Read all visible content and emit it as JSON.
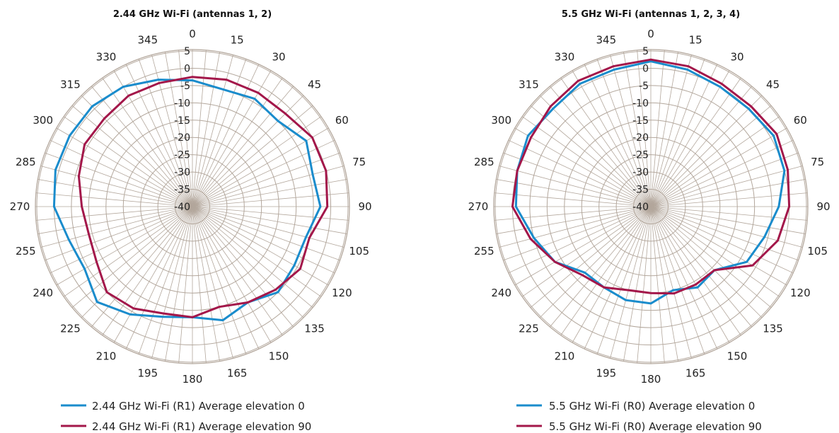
{
  "chart_data": [
    {
      "type": "polar-line",
      "title": "2.44 GHz Wi-Fi (antennas 1, 2)",
      "angle_ticks": [
        "0",
        "15",
        "30",
        "45",
        "60",
        "75",
        "90",
        "105",
        "120",
        "135",
        "150",
        "165",
        "180",
        "195",
        "210",
        "225",
        "240",
        "255",
        "270",
        "285",
        "300",
        "315",
        "330",
        "345"
      ],
      "radial_ticks": [
        "5",
        "0",
        "-5",
        "-10",
        "-15",
        "-20",
        "-25",
        "-30",
        "-35",
        "-40"
      ],
      "rlim": [
        -40,
        5
      ],
      "angle_direction": "clockwise",
      "zero_location": "top",
      "grid": true,
      "legend_position": "bottom",
      "colors": {
        "series1": "#1a8ccc",
        "series2": "#a3174a",
        "grid": "#b3a79c"
      },
      "angles": [
        0,
        15,
        30,
        45,
        60,
        75,
        90,
        105,
        120,
        135,
        150,
        165,
        180,
        195,
        210,
        225,
        240,
        255,
        270,
        285,
        300,
        315,
        330,
        345
      ],
      "series": [
        {
          "name": "2.44 GHz Wi-Fi (R1) Average elevation 0",
          "values": [
            -3.5,
            -5,
            -4,
            -5,
            -2,
            -4,
            -3,
            -6,
            -6,
            -5,
            -8,
            -6,
            -8,
            -7,
            -4,
            -1,
            -4,
            -3,
            0,
            1,
            1,
            1,
            0,
            -2
          ]
        },
        {
          "name": "2.44 GHz Wi-Fi (R1) Average elevation 90",
          "values": [
            -2.5,
            -2,
            -2,
            -2,
            0,
            0,
            -1,
            -5,
            -4,
            -6,
            -8,
            -10,
            -8,
            -8,
            -6,
            -5,
            -8,
            -9,
            -8,
            -6,
            -4,
            -4,
            -3,
            -3
          ]
        }
      ]
    },
    {
      "type": "polar-line",
      "title": "5.5 GHz Wi-Fi (antennas 1, 2, 3, 4)",
      "angle_ticks": [
        "0",
        "15",
        "30",
        "45",
        "60",
        "75",
        "90",
        "105",
        "120",
        "135",
        "150",
        "165",
        "180",
        "195",
        "210",
        "225",
        "240",
        "255",
        "270",
        "285",
        "300",
        "315",
        "330",
        "345"
      ],
      "radial_ticks": [
        "5",
        "0",
        "-5",
        "-10",
        "-15",
        "-20",
        "-25",
        "-30",
        "-35",
        "-40"
      ],
      "rlim": [
        -40,
        5
      ],
      "angle_direction": "clockwise",
      "zero_location": "top",
      "grid": true,
      "legend_position": "bottom",
      "colors": {
        "series1": "#1a8ccc",
        "series2": "#a3174a",
        "grid": "#b3a79c"
      },
      "angles": [
        0,
        15,
        30,
        45,
        60,
        75,
        90,
        105,
        120,
        135,
        150,
        165,
        180,
        195,
        210,
        225,
        240,
        255,
        270,
        285,
        300,
        315,
        330,
        345
      ],
      "series": [
        {
          "name": "5.5 GHz Wi-Fi (R0) Average elevation 0",
          "values": [
            2,
            1,
            0,
            0,
            1,
            0,
            -3,
            -6,
            -8,
            -14,
            -13,
            -15,
            -12,
            -12,
            -13,
            -13,
            -8,
            -5,
            -1,
            0,
            1,
            0,
            1,
            1
          ]
        },
        {
          "name": "5.5 GHz Wi-Fi (R0) Average elevation 90",
          "values": [
            2.5,
            2,
            1,
            1,
            2,
            1,
            0,
            -2,
            -6,
            -14,
            -14,
            -14,
            -15,
            -15,
            -13,
            -12,
            -8,
            -4,
            0,
            0,
            0,
            1,
            2,
            2
          ]
        }
      ]
    }
  ]
}
